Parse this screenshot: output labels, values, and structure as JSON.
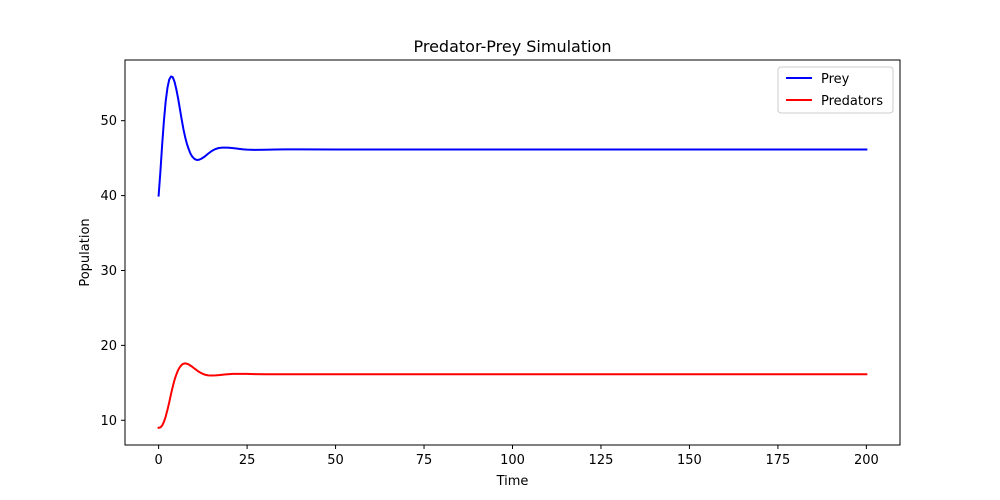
{
  "chart_data": {
    "type": "line",
    "title": "Predator-Prey Simulation",
    "xlabel": "Time",
    "ylabel": "Population",
    "xlim": [
      -9.5,
      209.5
    ],
    "ylim": [
      6.7,
      58.1
    ],
    "xticks": [
      0,
      25,
      50,
      75,
      100,
      125,
      150,
      175,
      200
    ],
    "xtick_labels": [
      "0",
      "25",
      "50",
      "75",
      "100",
      "125",
      "150",
      "175",
      "200"
    ],
    "yticks": [
      10,
      20,
      30,
      40,
      50
    ],
    "ytick_labels": [
      "10",
      "20",
      "30",
      "40",
      "50"
    ],
    "grid": false,
    "legend_position": "top-right",
    "series": [
      {
        "name": "Prey",
        "color": "#0000ff",
        "x": [
          0,
          0.5,
          1,
          1.5,
          2,
          2.5,
          3,
          3.5,
          4,
          4.5,
          5,
          5.5,
          6,
          6.5,
          7,
          7.5,
          8,
          8.5,
          9,
          9.5,
          10,
          10.5,
          11,
          11.5,
          12,
          13,
          14,
          15,
          16,
          17,
          18,
          19,
          20,
          21,
          22,
          23,
          24,
          25,
          27,
          30,
          33,
          36,
          40,
          50,
          75,
          100,
          125,
          150,
          175,
          200
        ],
        "y": [
          40.0,
          43.2,
          46.8,
          50.0,
          52.6,
          54.4,
          55.5,
          55.9,
          55.8,
          55.2,
          54.2,
          53.0,
          51.6,
          50.2,
          48.9,
          47.8,
          46.9,
          46.2,
          45.6,
          45.2,
          44.95,
          44.8,
          44.75,
          44.8,
          44.9,
          45.2,
          45.6,
          45.95,
          46.2,
          46.35,
          46.4,
          46.4,
          46.38,
          46.33,
          46.28,
          46.22,
          46.17,
          46.13,
          46.1,
          46.12,
          46.15,
          46.16,
          46.16,
          46.15,
          46.15,
          46.15,
          46.15,
          46.15,
          46.15,
          46.15
        ]
      },
      {
        "name": "Predators",
        "color": "#ff0000",
        "x": [
          0,
          0.5,
          1,
          1.5,
          2,
          2.5,
          3,
          3.5,
          4,
          4.5,
          5,
          5.5,
          6,
          6.5,
          7,
          7.5,
          8,
          8.5,
          9,
          9.5,
          10,
          11,
          12,
          13,
          14,
          15,
          16,
          17,
          18,
          19,
          20,
          21,
          22,
          23,
          24,
          25,
          27,
          30,
          33,
          36,
          40,
          50,
          75,
          100,
          125,
          150,
          175,
          200
        ],
        "y": [
          9.0,
          9.05,
          9.3,
          9.8,
          10.5,
          11.4,
          12.4,
          13.5,
          14.5,
          15.4,
          16.1,
          16.7,
          17.1,
          17.4,
          17.55,
          17.6,
          17.55,
          17.45,
          17.3,
          17.15,
          16.95,
          16.6,
          16.3,
          16.1,
          16.0,
          15.98,
          15.99,
          16.03,
          16.08,
          16.13,
          16.17,
          16.19,
          16.2,
          16.2,
          16.2,
          16.19,
          16.17,
          16.15,
          16.15,
          16.15,
          16.15,
          16.15,
          16.15,
          16.15,
          16.15,
          16.15,
          16.15,
          16.15
        ]
      }
    ]
  }
}
